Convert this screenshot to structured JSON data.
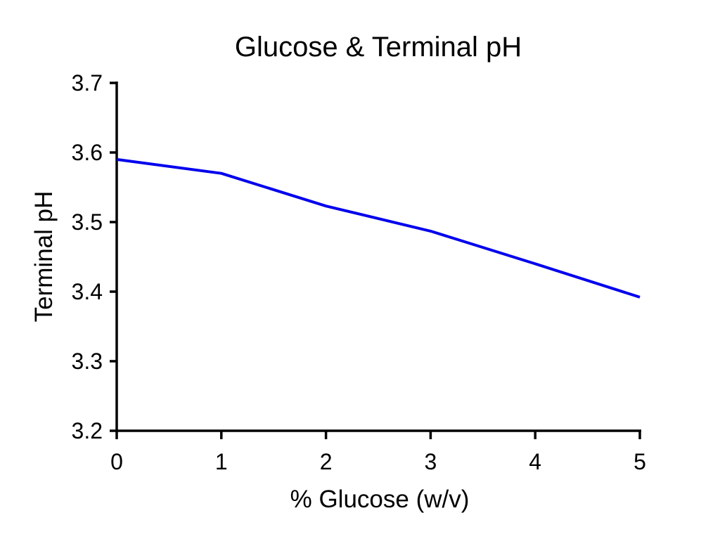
{
  "chart_data": {
    "type": "line",
    "title": "Glucose &  Terminal pH",
    "xlabel": "% Glucose (w/v)",
    "ylabel": "Terminal pH",
    "xlim": [
      0,
      5
    ],
    "ylim": [
      3.2,
      3.7
    ],
    "x_ticks": [
      "0",
      "1",
      "2",
      "3",
      "4",
      "5"
    ],
    "y_ticks": [
      "3.2",
      "3.3",
      "3.4",
      "3.5",
      "3.6",
      "3.7"
    ],
    "grid": false,
    "series": [
      {
        "color": "#0000ee",
        "x": [
          0,
          1,
          2,
          3,
          4,
          5
        ],
        "y": [
          3.59,
          3.57,
          3.523,
          3.487,
          3.44,
          3.392
        ]
      }
    ]
  }
}
